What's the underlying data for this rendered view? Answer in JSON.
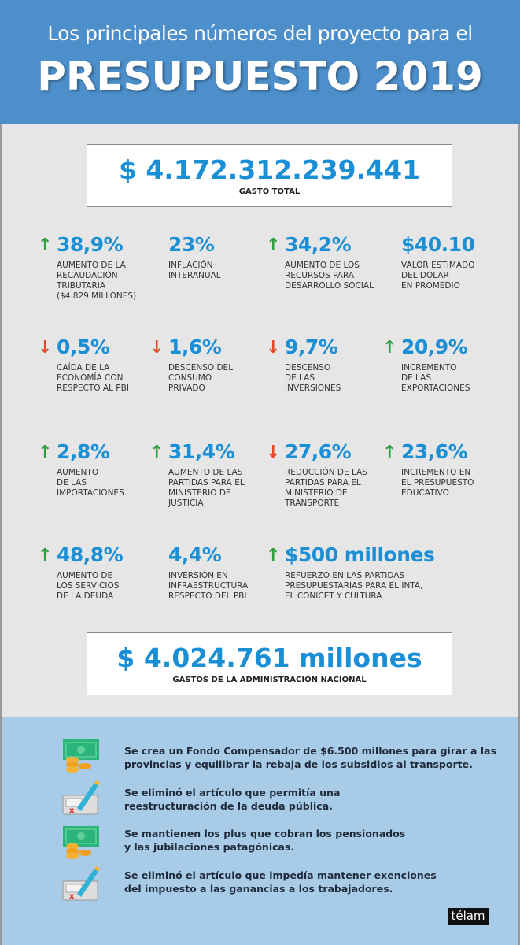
{
  "header": {
    "subtitle": "Los principales números del proyecto para el",
    "title": "PRESUPUESTO 2019"
  },
  "colors": {
    "accent": "#1b8fd6",
    "up": "#2e9e3e",
    "down": "#e04a2a",
    "header_bg": "#4d8fcb",
    "bottom_bg": "#a8cbe7"
  },
  "total": {
    "value": "$ 4.172.312.239.441",
    "label": "GASTO TOTAL"
  },
  "stats": [
    {
      "trend": "up",
      "value": "38,9%",
      "desc": "AUMENTO DE LA\nRECAUDACIÓN\nTRIBUTARIA\n($4.829 MILLONES)"
    },
    {
      "trend": "none",
      "value": "23%",
      "desc": "INFLACIÓN\nINTERANUAL"
    },
    {
      "trend": "up",
      "value": "34,2%",
      "desc": "AUMENTO DE LOS\nRECURSOS PARA\nDESARROLLO SOCIAL"
    },
    {
      "trend": "none",
      "value": "$40.10",
      "desc": "VALOR ESTIMADO\nDEL DÓLAR\nEN PROMEDIO"
    },
    {
      "trend": "down",
      "value": "0,5%",
      "desc": "CAÍDA DE LA\nECONOMÍA CON\nRESPECTO AL PBI"
    },
    {
      "trend": "down",
      "value": "1,6%",
      "desc": "DESCENSO DEL\nCONSUMO\nPRIVADO"
    },
    {
      "trend": "down",
      "value": "9,7%",
      "desc": "DESCENSO\nDE LAS\nINVERSIONES"
    },
    {
      "trend": "up",
      "value": "20,9%",
      "desc": "INCREMENTO\nDE LAS\nEXPORTACIONES"
    },
    {
      "trend": "up",
      "value": "2,8%",
      "desc": "AUMENTO\nDE LAS\nIMPORTACIONES"
    },
    {
      "trend": "up",
      "value": "31,4%",
      "desc": "AUMENTO DE LAS\nPARTIDAS PARA EL\nMINISTERIO DE\nJUSTICIA"
    },
    {
      "trend": "down",
      "value": "27,6%",
      "desc": "REDUCCIÓN DE LAS\nPARTIDAS PARA EL\nMINISTERIO DE\nTRANSPORTE"
    },
    {
      "trend": "up",
      "value": "23,6%",
      "desc": "INCREMENTO EN\nEL PRESUPUESTO\nEDUCATIVO"
    },
    {
      "trend": "up",
      "value": "48,8%",
      "desc": "AUMENTO DE\nLOS SERVICIOS\nDE LA DEUDA"
    },
    {
      "trend": "none",
      "value": "4,4%",
      "desc": "INVERSIÓN EN\nINFRAESTRUCTURA\nRESPECTO DEL PBI"
    },
    {
      "trend": "up",
      "value": "$500 millones",
      "desc": "REFUERZO EN LAS PARTIDAS\nPRESUPUESTARIAS PARA EL INTA,\nEL CONICET Y CULTURA"
    }
  ],
  "admin": {
    "value": "$ 4.024.761 millones",
    "label": "GASTOS DE LA ADMINISTRACIÓN NACIONAL"
  },
  "notes": [
    {
      "icon": "money-coins-icon",
      "text": "Se crea un Fondo Compensador de $6.500 millones para girar a las\nprovincias y equilibrar la rebaja de los subsidios al transporte."
    },
    {
      "icon": "document-pen-icon",
      "text": "Se eliminó el artículo que permitía una\nreestructuración de la deuda pública."
    },
    {
      "icon": "money-coins-icon",
      "text": "Se mantienen los plus que cobran los pensionados\ny las jubilaciones patagónicas."
    },
    {
      "icon": "document-pen-icon",
      "text": "Se eliminó el artículo que impedía mantener exenciones\ndel impuesto a las ganancias a los trabajadores."
    }
  ],
  "logo": "télam"
}
